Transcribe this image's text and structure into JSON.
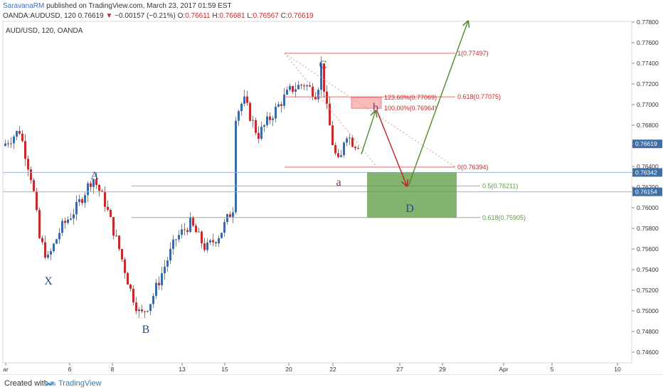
{
  "header": {
    "author": "SaravanaRM",
    "published": " published on TradingView.com, March 23, 2017 01:59 EST",
    "symbol": "OANDA:AUDUSD, 120",
    "last": "0.76619",
    "change": "−0.00157 (−0.21%)",
    "o_label": "O:",
    "o_val": "0.76611",
    "h_label": "H:",
    "h_val": "0.76681",
    "l_label": "L:",
    "l_val": "0.76567",
    "c_label": "C:",
    "c_val": "0.76619"
  },
  "plot_label": "AUD/USD, 120, OANDA",
  "footer": {
    "created_with": "Created with",
    "brand": "TradingView"
  },
  "colors": {
    "up": "#3b6aa8",
    "down": "#c72a2a",
    "price_badge": "#3f6fa7",
    "fib_red": "#e86a6a",
    "fib_green": "#8fb87a",
    "zone_green": "#5a9a3f",
    "zone_red": "#f2a0a0",
    "arrow_green": "#4f8a2a",
    "arrow_red": "#c02020"
  },
  "chart_data": {
    "type": "candlestick",
    "ylim": [
      0.746,
      0.779
    ],
    "y_ticks": [
      "0.77800",
      "0.77600",
      "0.77400",
      "0.77200",
      "0.77000",
      "0.76800",
      "0.76600",
      "0.76400",
      "0.76200",
      "0.76000",
      "0.75800",
      "0.75600",
      "0.75400",
      "0.75200",
      "0.75000",
      "0.74800",
      "0.74600"
    ],
    "x_ticks": [
      "ar",
      "6",
      "8",
      "13",
      "15",
      "20",
      "22",
      "27",
      "29",
      "Apr",
      "5",
      "10"
    ],
    "price_badges": [
      {
        "value": "0.76619",
        "price": 0.76619
      },
      {
        "value": "0.76342",
        "price": 0.76342
      },
      {
        "value": "0.76154",
        "price": 0.76154
      }
    ],
    "wave_points": [
      {
        "label": "X",
        "color": "#1f4f8c"
      },
      {
        "label": "A",
        "color": "#1f4f8c"
      },
      {
        "label": "B",
        "color": "#1f4f8c"
      },
      {
        "label": "C",
        "color": "#1f4f8c"
      },
      {
        "label": "a",
        "color": "#8a2a6a"
      },
      {
        "label": "b",
        "color": "#8a2a6a"
      },
      {
        "label": "D",
        "color": "#1f4f8c"
      }
    ],
    "fib_upper": [
      {
        "label": "1(0.77497)",
        "price": 0.77497
      },
      {
        "label": "0.618(0.77075)",
        "price": 0.77075
      },
      {
        "label": "0(0.76394)",
        "price": 0.76394
      }
    ],
    "fib_ext": [
      {
        "label": "123.60%(0.77069)",
        "price": 0.77069
      },
      {
        "label": "100.00%(0.76964)",
        "price": 0.76964
      }
    ],
    "fib_lower": [
      {
        "label": "0.5(0.76211)",
        "price": 0.76211
      },
      {
        "label": "0.618(0.75905)",
        "price": 0.75905
      }
    ],
    "h_lines": [
      0.76342,
      0.76154
    ]
  }
}
